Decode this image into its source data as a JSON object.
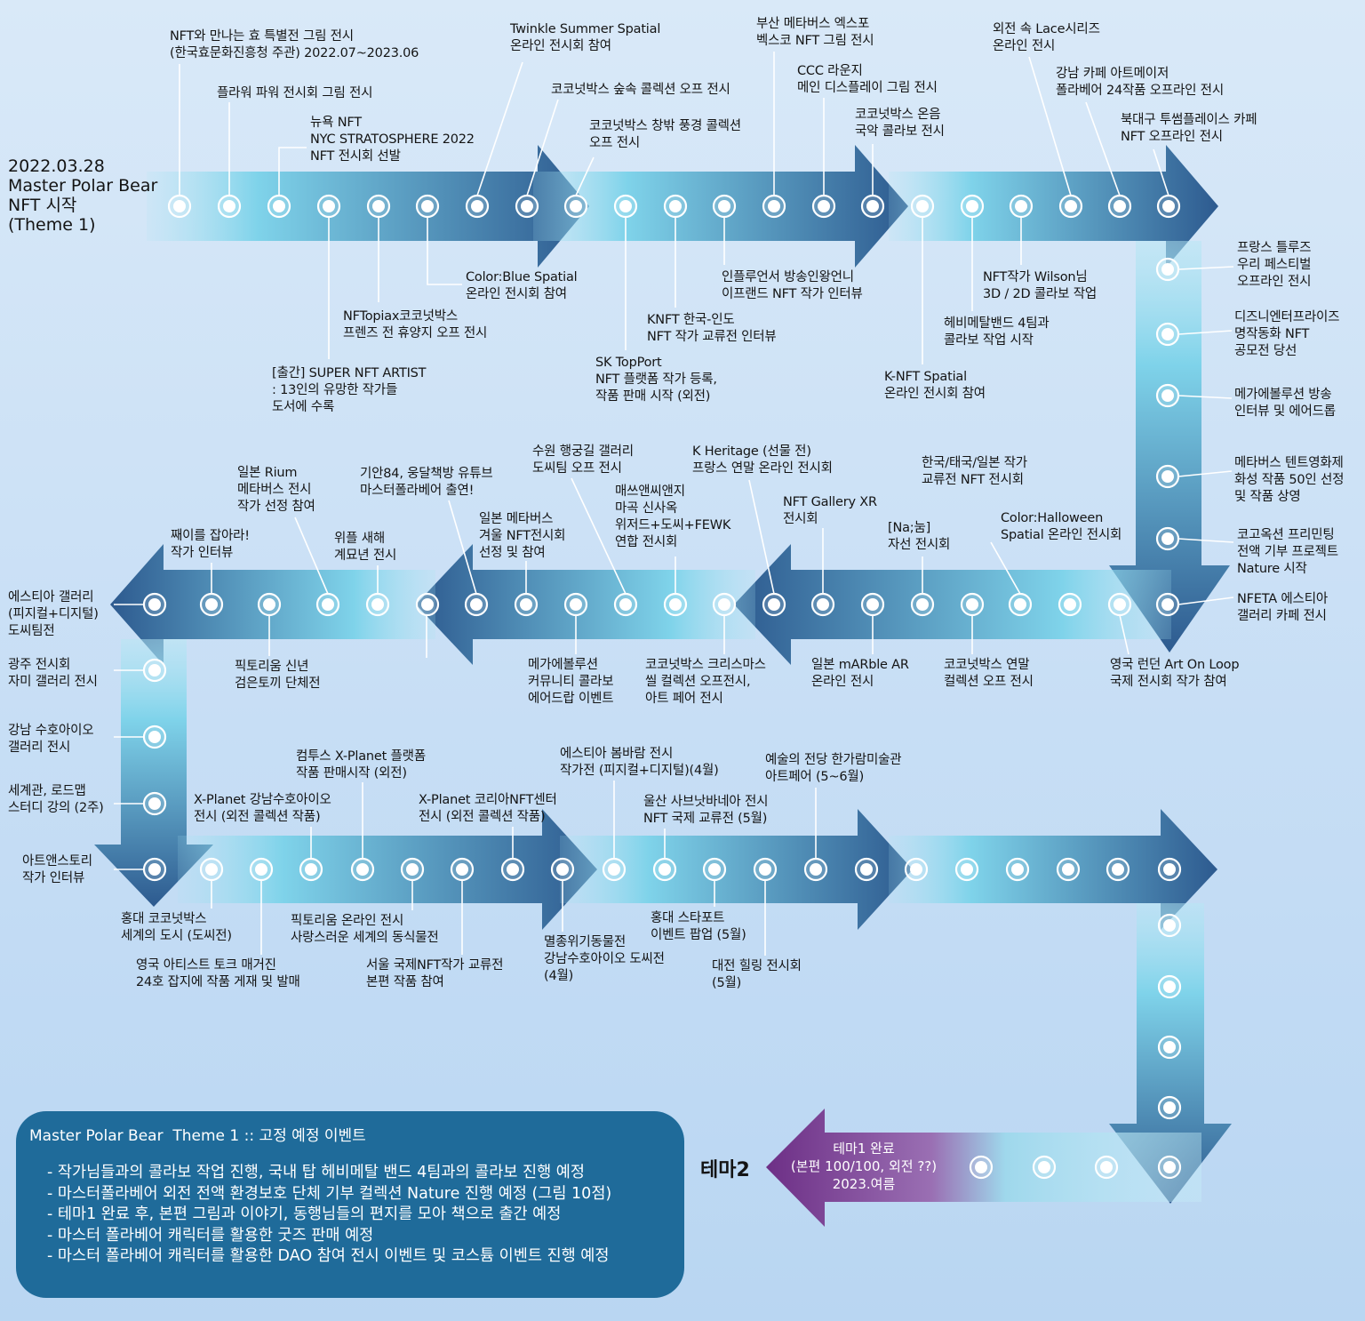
{
  "start_label": "2022.03.28\nMaster Polar Bear\nNFT 시작\n(Theme 1)",
  "theme2_label": "테마2",
  "final_label": "테마1 완료\n(본편 100/100, 외전 ??)\n2023.여름",
  "plan": {
    "title": "Master Polar Bear  Theme 1 :: 고정 예정 이벤트",
    "items": [
      "작가님들과의 콜라보 작업 진행, 국내 탑 헤비메탈 밴드 4팀과의 콜라보 진행 예정",
      "마스터폴라베어 외전 전액 환경보호 단체 기부 컬렉션 Nature 진행 예정 (그림 10점)",
      "테마1 완료 후, 본편 그림과 이야기, 동행님들의 편지를 모아 책으로 출간 예정",
      "마스터 폴라베어 캐릭터를 활용한 굿즈 판매 예정",
      "마스터 폴라베어 캐릭터를 활용한 DAO 참여 전시 이벤트 및 코스튬 이벤트 진행 예정"
    ]
  },
  "colors": {
    "arrow_dark": "#2f5a8e",
    "arrow_light": "#8fdcec",
    "final_arrow": "#7e3f92",
    "plan_box": "#1f6b9a",
    "connector": "#ffffff"
  },
  "events": [
    {
      "text": "NFT와 만나는 효 특별전 그림 전시\n(한국효문화진흥청 주관) 2022.07~2023.06"
    },
    {
      "text": "플라워 파워 전시회 그림 전시"
    },
    {
      "text": "뉴욕 NFT\nNYC STRATOSPHERE 2022\nNFT 전시회 선발"
    },
    {
      "text": "[출간] SUPER NFT ARTIST\n: 13인의 유망한 작가들\n도서에 수록"
    },
    {
      "text": "NFTopiax코코넛박스\n프렌즈 전 휴양지 오프 전시"
    },
    {
      "text": "Color:Blue Spatial\n온라인 전시회 참여"
    },
    {
      "text": "Twinkle Summer Spatial\n온라인 전시회 참여"
    },
    {
      "text": "코코넛박스 숲속 콜렉션 오프 전시"
    },
    {
      "text": "코코넛박스 창밖 풍경 콜렉션\n오프 전시"
    },
    {
      "text": "SK TopPort\nNFT 플랫폼 작가 등록,\n작품 판매 시작 (외전)"
    },
    {
      "text": "KNFT 한국-인도\nNFT 작가 교류전 인터뷰"
    },
    {
      "text": "인플루언서 방송인왕언니\n이프랜드 NFT 작가 인터뷰"
    },
    {
      "text": "부산 메타버스 엑스포\n벡스코 NFT 그림 전시"
    },
    {
      "text": "CCC 라운지\n메인 디스플레이 그림 전시"
    },
    {
      "text": "코코넛박스 온음\n국악 콜라보 전시"
    },
    {
      "text": "K-NFT Spatial\n온라인 전시회 참여"
    },
    {
      "text": "헤비메탈밴드 4팀과\n콜라보 작업 시작"
    },
    {
      "text": "NFT작가 Wilson님\n3D / 2D 콜라보 작업"
    },
    {
      "text": "외전 속 Lace시리즈\n온라인 전시"
    },
    {
      "text": "강남 카페 아트메이저\n폴라베어 24작품 오프라인 전시"
    },
    {
      "text": "북대구 투썸플레이스 카페\nNFT 오프라인 전시"
    },
    {
      "text": "프랑스 틀루즈\n우리 페스티벌\n오프라인 전시"
    },
    {
      "text": "디즈니엔터프라이즈\n명작동화 NFT\n공모전 당선"
    },
    {
      "text": "메가에볼루션 방송\n인터뷰 및 에어드롭"
    },
    {
      "text": "메타버스 텐트영화제\n화성 작품 50인 선정\n및 작품 상영"
    },
    {
      "text": "코고옥션 프리민팅\n전액 기부 프로젝트\nNature 시작"
    },
    {
      "text": "NFETA 에스티아\n갤러리 카페 전시"
    },
    {
      "text": "영국 런던 Art On Loop\n국제 전시회 작가 참여"
    },
    {
      "text": "Color:Halloween\nSpatial 온라인 전시회"
    },
    {
      "text": "코코넛박스 연말\n컬렉션 오프 전시"
    },
    {
      "text": "한국/태국/일본 작가\n교류전 NFT 전시회"
    },
    {
      "text": "[Na;눔]\n자선 전시회"
    },
    {
      "text": "일본 mARble AR\n온라인 전시"
    },
    {
      "text": "NFT Gallery XR\n전시회"
    },
    {
      "text": "K Heritage (선물 전)\n프랑스 연말 온라인 전시회"
    },
    {
      "text": "코코넛박스 크리스마스\n씰 컬렉션 오프전시,\n아트 페어 전시"
    },
    {
      "text": "매쓰앤씨앤지\n마곡 신사옥\n위저드+도씨+FEWK\n연합 전시회"
    },
    {
      "text": "수원 행궁길 갤러리\n도씨팀 오프 전시"
    },
    {
      "text": "메가에볼루션\n커뮤니티 콜라보\n에어드랍 이벤트"
    },
    {
      "text": "일본 메타버스\n겨울 NFT전시회\n선정 및 참여"
    },
    {
      "text": "기안84, 웅달책방 유튜브\n마스터폴라베어 출연!"
    },
    {
      "text": "위플 새해\n계묘년 전시"
    },
    {
      "text": "일본 Rium\n메타버스 전시\n작가 선정 참여"
    },
    {
      "text": "픽토리움 신년\n검은토끼 단체전"
    },
    {
      "text": "째이를 잡아라!\n작가 인터뷰"
    },
    {
      "text": "에스티아 갤러리\n(피지컬+디지털)\n도씨팀전"
    },
    {
      "text": "광주 전시회\n자미 갤러리 전시"
    },
    {
      "text": "강남 수호아이오\n갤러리 전시"
    },
    {
      "text": "세계관, 로드맵\n스터디 강의 (2주)"
    },
    {
      "text": "아트앤스토리\n작가 인터뷰"
    },
    {
      "text": "홍대 코코넛박스\n세계의 도시 (도씨전)"
    },
    {
      "text": "X-Planet 강남수호아이오\n전시 (외전 콜렉션 작품)"
    },
    {
      "text": "영국 아티스트 토크 매거진\n24호 잡지에 작품 게재 및 발매"
    },
    {
      "text": "컴투스 X-Planet 플랫폼\n작품 판매시작 (외전)"
    },
    {
      "text": "픽토리움 온라인 전시\n사랑스러운 세계의 동식물전"
    },
    {
      "text": "서울 국제NFT작가 교류전\n본편 작품 참여"
    },
    {
      "text": "X-Planet 코리아NFT센터\n전시 (외전 콜렉션 작품)"
    },
    {
      "text": "멸종위기동물전\n강남수호아이오 도씨전\n(4월)"
    },
    {
      "text": "에스티아 봄바람 전시\n작가전 (피지컬+디지털)(4월)"
    },
    {
      "text": "울산 사브낫바네아 전시\nNFT 국제 교류전 (5월)"
    },
    {
      "text": "홍대 스타포트\n이벤트 팝업 (5월)"
    },
    {
      "text": "대전 힐링 전시회\n(5월)"
    },
    {
      "text": "예술의 전당 한가람미술관\n아트페어 (5~6월)"
    }
  ]
}
